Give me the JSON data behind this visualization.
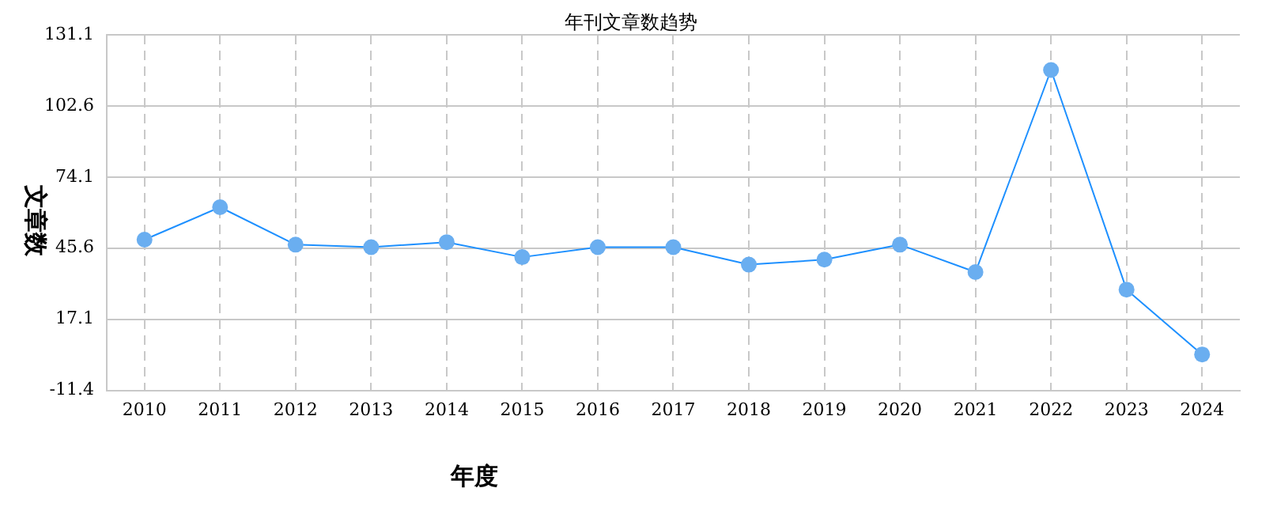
{
  "chart_data": {
    "type": "line",
    "title": "年刊文章数趋势",
    "xlabel": "年度",
    "ylabel": "文章数",
    "categories": [
      "2010",
      "2011",
      "2012",
      "2013",
      "2014",
      "2015",
      "2016",
      "2017",
      "2018",
      "2019",
      "2020",
      "2021",
      "2022",
      "2023",
      "2024"
    ],
    "series": [
      {
        "color": "#1e90ff",
        "values": [
          49,
          62,
          47,
          46,
          48,
          42,
          46,
          46,
          39,
          41,
          47,
          36,
          117,
          29,
          3
        ]
      }
    ],
    "ylim": [
      -11.4,
      131.1
    ],
    "yticks": [
      -11.4,
      17.1,
      45.6,
      74.1,
      102.6,
      131.1
    ],
    "grid": true,
    "legend": false,
    "marker": "circle",
    "line_style": "solid"
  }
}
